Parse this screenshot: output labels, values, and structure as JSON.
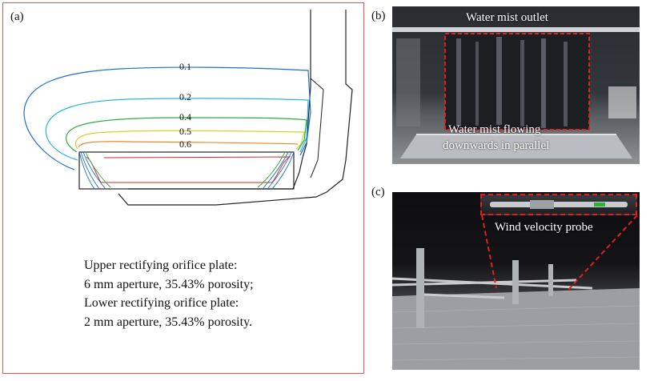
{
  "panels": {
    "a": {
      "label": "(a)"
    },
    "b": {
      "label": "(b)"
    },
    "c": {
      "label": "(c)"
    }
  },
  "contour_labels": [
    "0.1",
    "0.2",
    "0.4",
    "0.5",
    "0.6"
  ],
  "contour_colors": [
    "#1e6fd0",
    "#2bb5d8",
    "#2eae3a",
    "#d8cf2a",
    "#e88a2a",
    "#d62a2a"
  ],
  "caption": {
    "line1": "Upper rectifying orifice plate:",
    "line2": "6 mm aperture, 35.43% porosity;",
    "line3": "Lower rectifying orifice plate:",
    "line4": "2 mm aperture, 35.43% porosity."
  },
  "photo_b": {
    "outlet_label": "Water mist outlet",
    "flow_label_line1": "Water mist flowing",
    "flow_label_line2": "downwards in parallel"
  },
  "photo_c": {
    "probe_label": "Wind velocity probe"
  },
  "colors": {
    "frame": "#e05555",
    "highlight_dash": "#e02020"
  }
}
